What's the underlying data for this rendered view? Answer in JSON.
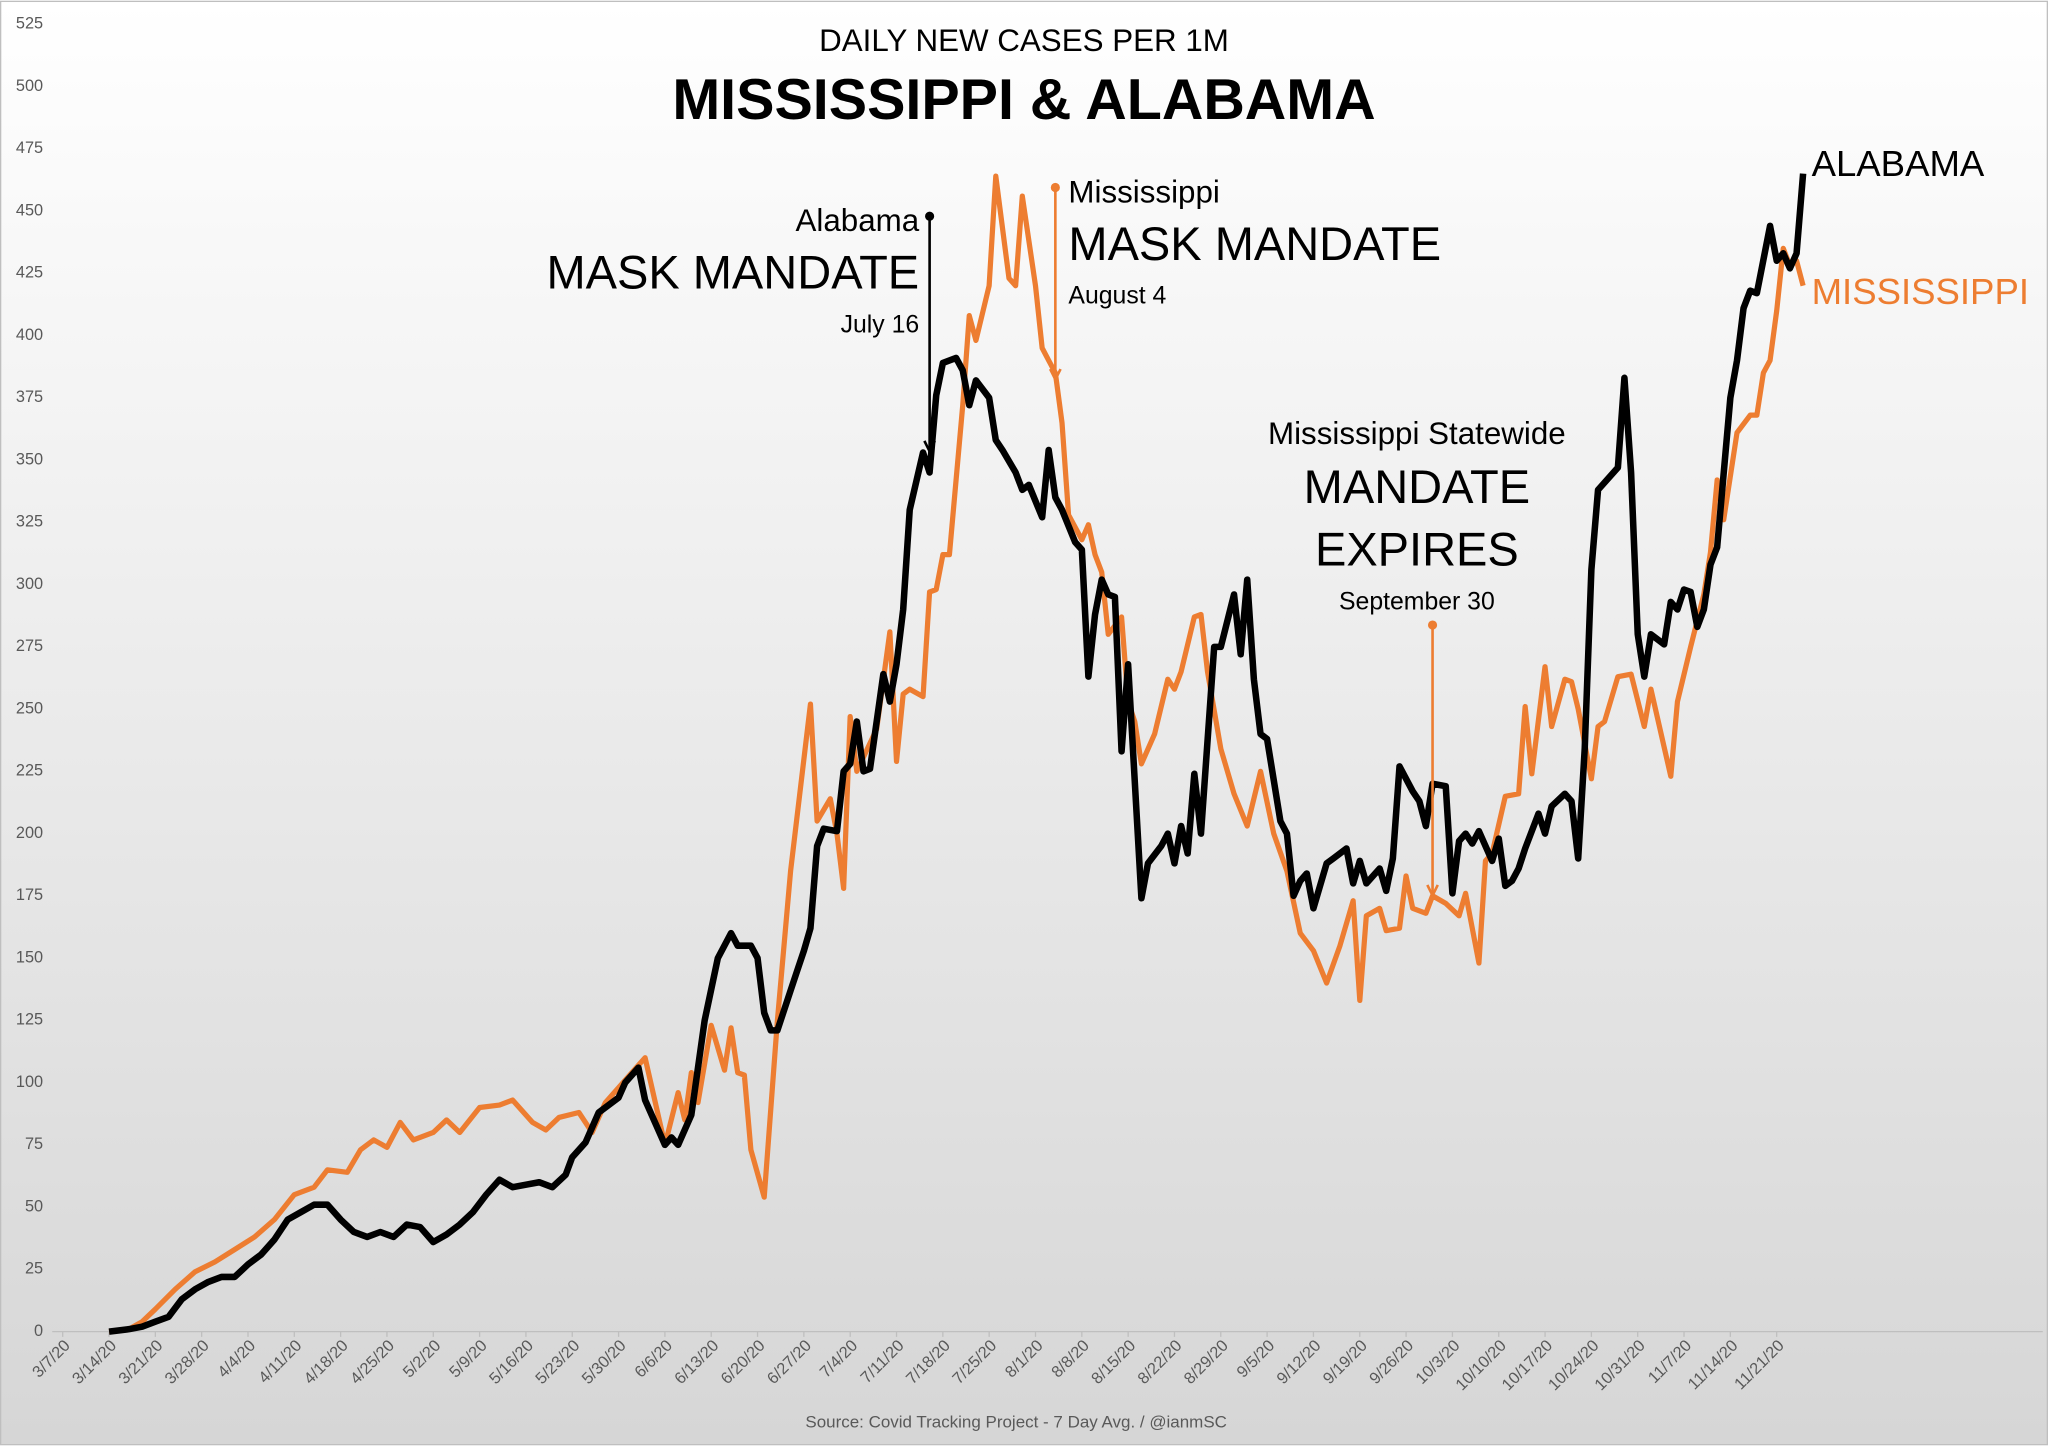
{
  "chart_data": {
    "type": "line",
    "subtitle": "DAILY NEW CASES PER 1M",
    "title": "MISSISSIPPI & ALABAMA",
    "source": "Source: Covid Tracking Project - 7 Day Avg. / @ianmSC",
    "xlim": [
      "3/7/20",
      "1/1/21"
    ],
    "xticks": [
      "3/7/20",
      "3/14/20",
      "3/21/20",
      "3/28/20",
      "4/4/20",
      "4/11/20",
      "4/18/20",
      "4/25/20",
      "5/2/20",
      "5/9/20",
      "5/16/20",
      "5/23/20",
      "5/30/20",
      "6/6/20",
      "6/13/20",
      "6/20/20",
      "6/27/20",
      "7/4/20",
      "7/11/20",
      "7/18/20",
      "7/25/20",
      "8/1/20",
      "8/8/20",
      "8/15/20",
      "8/22/20",
      "8/29/20",
      "9/5/20",
      "9/12/20",
      "9/19/20",
      "9/26/20",
      "10/3/20",
      "10/10/20",
      "10/17/20",
      "10/24/20",
      "10/31/20",
      "11/7/20",
      "11/14/20",
      "11/21/20"
    ],
    "ylim": [
      0,
      525
    ],
    "yticks": [
      0,
      25,
      50,
      75,
      100,
      125,
      150,
      175,
      200,
      225,
      250,
      275,
      300,
      325,
      350,
      375,
      400,
      425,
      450,
      475,
      500,
      525
    ],
    "grid": false,
    "series": [
      {
        "name": "ALABAMA",
        "color": "#000000",
        "x": [
          "3/14/20",
          "3/17/20",
          "3/19/20",
          "3/21/20",
          "3/23/20",
          "3/25/20",
          "3/27/20",
          "3/29/20",
          "3/31/20",
          "4/2/20",
          "4/4/20",
          "4/6/20",
          "4/8/20",
          "4/10/20",
          "4/12/20",
          "4/14/20",
          "4/16/20",
          "4/18/20",
          "4/20/20",
          "4/22/20",
          "4/24/20",
          "4/26/20",
          "4/28/20",
          "4/30/20",
          "5/2/20",
          "5/4/20",
          "5/6/20",
          "5/8/20",
          "5/10/20",
          "5/12/20",
          "5/14/20",
          "5/16/20",
          "5/18/20",
          "5/20/20",
          "5/22/20",
          "5/23/20",
          "5/25/20",
          "5/27/20",
          "5/30/20",
          "5/31/20",
          "6/2/20",
          "6/3/20",
          "6/6/20",
          "6/7/20",
          "6/8/20",
          "6/10/20",
          "6/12/20",
          "6/14/20",
          "6/16/20",
          "6/17/20",
          "6/19/20",
          "6/20/20",
          "6/21/20",
          "6/22/20",
          "6/23/20",
          "6/25/20",
          "6/26/20",
          "6/27/20",
          "6/28/20",
          "6/29/20",
          "6/30/20",
          "7/2/20",
          "7/3/20",
          "7/4/20",
          "7/5/20",
          "7/6/20",
          "7/7/20",
          "7/9/20",
          "7/10/20",
          "7/11/20",
          "7/12/20",
          "7/13/20",
          "7/15/20",
          "7/16/20",
          "7/17/20",
          "7/18/20",
          "7/20/20",
          "7/21/20",
          "7/22/20",
          "7/23/20",
          "7/25/20",
          "7/26/20",
          "7/27/20",
          "7/29/20",
          "7/30/20",
          "7/31/20",
          "8/2/20",
          "8/3/20",
          "8/4/20",
          "8/5/20",
          "8/7/20",
          "8/8/20",
          "8/9/20",
          "8/10/20",
          "8/11/20",
          "8/12/20",
          "8/13/20",
          "8/14/20",
          "8/15/20",
          "8/17/20",
          "8/18/20",
          "8/20/20",
          "8/21/20",
          "8/22/20",
          "8/23/20",
          "8/24/20",
          "8/25/20",
          "8/26/20",
          "8/28/20",
          "8/29/20",
          "8/31/20",
          "9/1/20",
          "9/2/20",
          "9/3/20",
          "9/4/20",
          "9/5/20",
          "9/7/20",
          "9/8/20",
          "9/9/20",
          "9/10/20",
          "9/11/20",
          "9/12/20",
          "9/14/20",
          "9/15/20",
          "9/17/20",
          "9/18/20",
          "9/19/20",
          "9/20/20",
          "9/22/20",
          "9/23/20",
          "9/24/20",
          "9/25/20",
          "9/27/20",
          "9/28/20",
          "9/29/20",
          "9/30/20",
          "10/2/20",
          "10/3/20",
          "10/4/20",
          "10/5/20",
          "10/6/20",
          "10/7/20",
          "10/9/20",
          "10/10/20",
          "10/11/20",
          "10/12/20",
          "10/13/20",
          "10/14/20",
          "10/16/20",
          "10/17/20",
          "10/18/20",
          "10/20/20",
          "10/21/20",
          "10/22/20",
          "10/23/20",
          "10/24/20",
          "10/25/20",
          "10/28/20",
          "10/29/20",
          "10/30/20",
          "10/31/20",
          "11/1/20",
          "11/2/20",
          "11/4/20",
          "11/5/20",
          "11/6/20",
          "11/7/20",
          "11/8/20",
          "11/9/20",
          "11/10/20",
          "11/11/20",
          "11/12/20",
          "11/14/20",
          "11/15/20",
          "11/16/20",
          "11/17/20",
          "11/18/20",
          "11/20/20",
          "11/21/20",
          "11/22/20",
          "11/23/20",
          "11/24/20",
          "11/25/20"
        ],
        "values": [
          0,
          1,
          2,
          4,
          6,
          13,
          17,
          20,
          22,
          22,
          27,
          31,
          37,
          45,
          48,
          51,
          51,
          45,
          40,
          38,
          40,
          38,
          43,
          42,
          36,
          39,
          43,
          48,
          55,
          61,
          58,
          59,
          60,
          58,
          63,
          70,
          76,
          88,
          94,
          100,
          106,
          93,
          75,
          78,
          75,
          87,
          125,
          150,
          160,
          155,
          155,
          150,
          128,
          121,
          121,
          137,
          145,
          153,
          162,
          195,
          202,
          201,
          225,
          228,
          245,
          225,
          226,
          264,
          253,
          268,
          290,
          330,
          353,
          345,
          376,
          389,
          391,
          386,
          372,
          382,
          375,
          358,
          354,
          345,
          338,
          340,
          327,
          354,
          335,
          330,
          317,
          314,
          263,
          288,
          302,
          296,
          295,
          233,
          268,
          174,
          188,
          195,
          200,
          188,
          203,
          192,
          224,
          200,
          275,
          275,
          296,
          272,
          302,
          262,
          240,
          238,
          205,
          200,
          175,
          181,
          184,
          170,
          188,
          190,
          194,
          180,
          189,
          180,
          186,
          177,
          190,
          227,
          217,
          213,
          203,
          220,
          219,
          176,
          197,
          200,
          196,
          201,
          189,
          198,
          179,
          181,
          186,
          194,
          208,
          200,
          211,
          216,
          213,
          190,
          234,
          306,
          338,
          347,
          383,
          345,
          280,
          263,
          280,
          276,
          293,
          290,
          298,
          297,
          283,
          290,
          308,
          315,
          375,
          390,
          411,
          418,
          417,
          444,
          430,
          433,
          427,
          433,
          465
        ]
      },
      {
        "name": "MISSISSIPPI",
        "color": "#ed7d31",
        "x": [
          "3/14/20",
          "3/17/20",
          "3/19/20",
          "3/21/20",
          "3/24/20",
          "3/27/20",
          "3/30/20",
          "4/2/20",
          "4/5/20",
          "4/8/20",
          "4/11/20",
          "4/14/20",
          "4/16/20",
          "4/19/20",
          "4/21/20",
          "4/23/20",
          "4/25/20",
          "4/27/20",
          "4/29/20",
          "5/2/20",
          "5/4/20",
          "5/6/20",
          "5/9/20",
          "5/12/20",
          "5/14/20",
          "5/17/20",
          "5/19/20",
          "5/21/20",
          "5/24/20",
          "5/26/20",
          "5/28/20",
          "5/31/20",
          "6/3/20",
          "6/6/20",
          "6/8/20",
          "6/9/20",
          "6/10/20",
          "6/11/20",
          "6/13/20",
          "6/15/20",
          "6/16/20",
          "6/17/20",
          "6/18/20",
          "6/19/20",
          "6/21/20",
          "6/23/20",
          "6/25/20",
          "6/28/20",
          "6/29/20",
          "7/1/20",
          "7/2/20",
          "7/3/20",
          "7/4/20",
          "7/5/20",
          "7/8/20",
          "7/10/20",
          "7/11/20",
          "7/12/20",
          "7/13/20",
          "7/15/20",
          "7/16/20",
          "7/17/20",
          "7/18/20",
          "7/19/20",
          "7/21/20",
          "7/22/20",
          "7/23/20",
          "7/25/20",
          "7/26/20",
          "7/28/20",
          "7/29/20",
          "7/30/20",
          "8/1/20",
          "8/2/20",
          "8/3/20",
          "8/4/20",
          "8/5/20",
          "8/6/20",
          "8/8/20",
          "8/9/20",
          "8/10/20",
          "8/11/20",
          "8/12/20",
          "8/14/20",
          "8/15/20",
          "8/16/20",
          "8/17/20",
          "8/19/20",
          "8/21/20",
          "8/22/20",
          "8/23/20",
          "8/25/20",
          "8/26/20",
          "8/27/20",
          "8/29/20",
          "8/31/20",
          "9/2/20",
          "9/4/20",
          "9/6/20",
          "9/8/20",
          "9/10/20",
          "9/12/20",
          "9/14/20",
          "9/16/20",
          "9/18/20",
          "9/19/20",
          "9/20/20",
          "9/22/20",
          "9/23/20",
          "9/25/20",
          "9/26/20",
          "9/27/20",
          "9/29/20",
          "9/30/20",
          "10/2/20",
          "10/4/20",
          "10/5/20",
          "10/7/20",
          "10/8/20",
          "10/9/20",
          "10/11/20",
          "10/13/20",
          "10/14/20",
          "10/15/20",
          "10/17/20",
          "10/18/20",
          "10/20/20",
          "10/21/20",
          "10/22/20",
          "10/24/20",
          "10/25/20",
          "10/26/20",
          "10/28/20",
          "10/30/20",
          "11/1/20",
          "11/2/20",
          "11/5/20",
          "11/6/20",
          "11/8/20",
          "11/10/20",
          "11/11/20",
          "11/12/20",
          "11/13/20",
          "11/15/20",
          "11/17/20",
          "11/18/20",
          "11/19/20",
          "11/20/20",
          "11/21/20",
          "11/22/20",
          "11/23/20",
          "11/24/20",
          "11/25/20"
        ],
        "values": [
          0,
          1,
          4,
          9,
          17,
          24,
          28,
          33,
          38,
          45,
          55,
          58,
          65,
          64,
          73,
          77,
          74,
          84,
          77,
          80,
          85,
          80,
          90,
          91,
          93,
          84,
          81,
          86,
          88,
          80,
          92,
          101,
          110,
          75,
          96,
          85,
          104,
          92,
          123,
          105,
          122,
          104,
          103,
          73,
          54,
          125,
          185,
          252,
          205,
          214,
          200,
          178,
          247,
          225,
          242,
          281,
          229,
          256,
          258,
          255,
          297,
          298,
          312,
          312,
          372,
          408,
          398,
          420,
          464,
          423,
          420,
          456,
          420,
          395,
          390,
          385,
          365,
          328,
          318,
          324,
          312,
          305,
          280,
          287,
          253,
          245,
          228,
          240,
          262,
          258,
          265,
          287,
          288,
          265,
          234,
          216,
          203,
          225,
          200,
          185,
          160,
          153,
          140,
          155,
          173,
          133,
          167,
          170,
          161,
          162,
          183,
          170,
          168,
          175,
          172,
          167,
          176,
          148,
          189,
          192,
          215,
          216,
          251,
          224,
          267,
          243,
          262,
          261,
          250,
          222,
          243,
          245,
          263,
          264,
          243,
          258,
          223,
          253,
          275,
          296,
          313,
          342,
          326,
          361,
          368,
          368,
          385,
          390,
          410,
          435,
          428,
          430,
          420
        ]
      }
    ],
    "annotations": [
      {
        "x": "7/16/20",
        "color": "#000000",
        "texts": [
          "Alabama",
          "MASK MANDATE",
          "July 16"
        ]
      },
      {
        "x": "8/4/20",
        "color": "#ed7d31",
        "texts": [
          "Mississippi",
          "MASK MANDATE",
          "August 4"
        ]
      },
      {
        "x": "9/30/20",
        "color": "#ed7d31",
        "texts": [
          "Mississippi Statewide",
          "MANDATE",
          "EXPIRES",
          "September 30"
        ]
      }
    ]
  }
}
